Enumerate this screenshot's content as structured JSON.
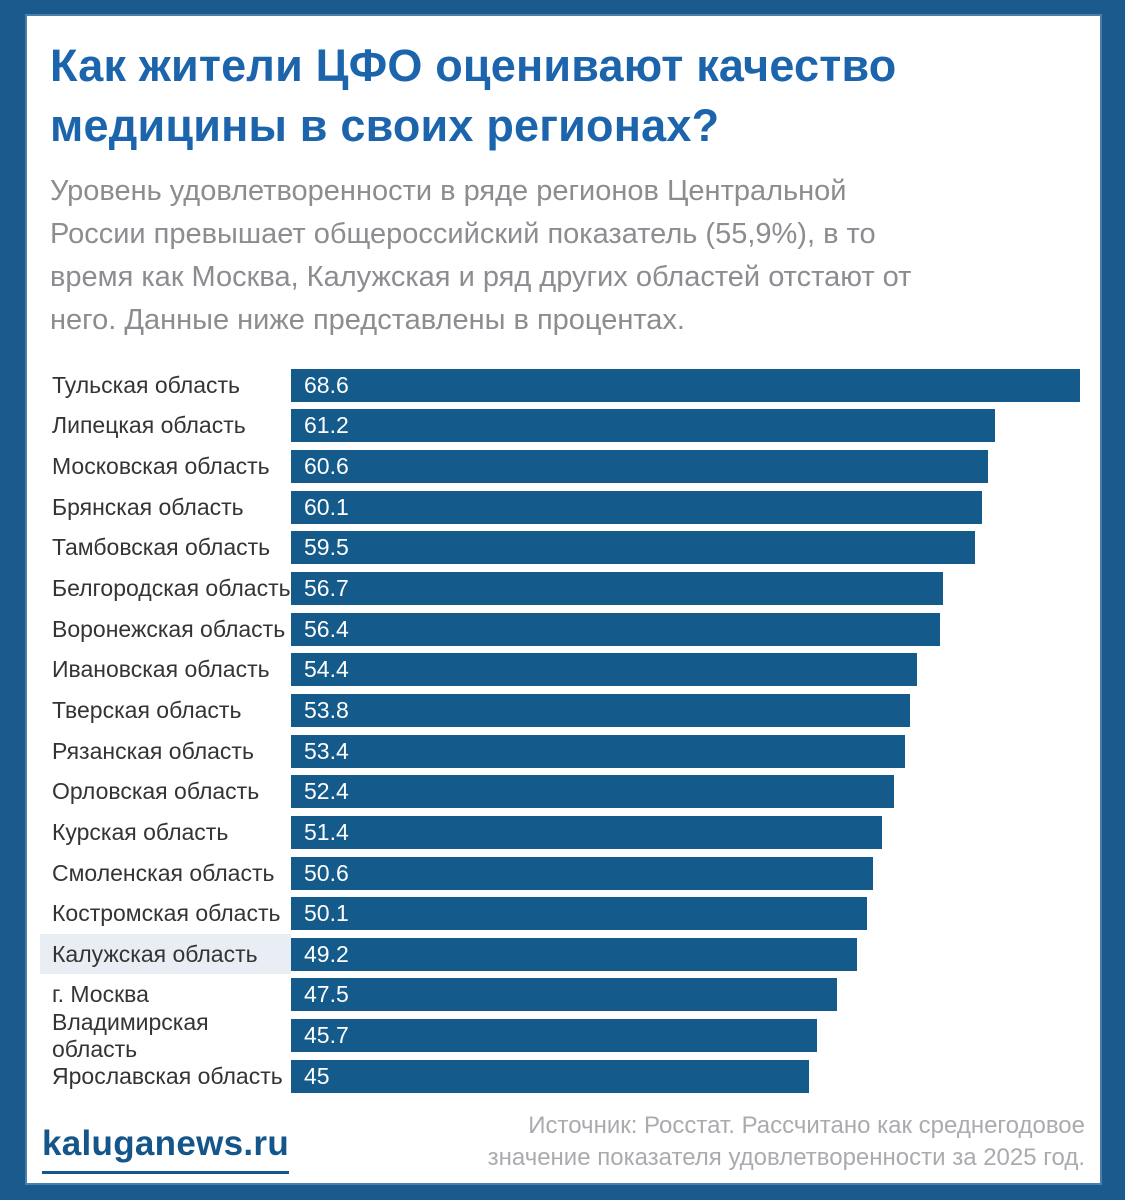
{
  "header": {
    "title_line1": "Как жители ЦФО оценивают качество",
    "title_line2": "медицины в своих регионах?",
    "subtitle_line1": "Уровень удовлетворенности в ряде регионов Центральной",
    "subtitle_line2": "России превышает общероссийский показатель (55,9%), в то",
    "subtitle_line3": "время как Москва, Калужская и ряд других областей отстают от",
    "subtitle_line4": "него. Данные ниже представлены в процентах."
  },
  "chart_data": {
    "type": "bar",
    "orientation": "horizontal",
    "title": "Как жители ЦФО оценивают качество медицины в своих регионах?",
    "units": "percent",
    "categories": [
      "Тульская область",
      "Липецкая область",
      "Московская область",
      "Брянская область",
      "Тамбовская область",
      "Белгородская область",
      "Воронежская область",
      "Ивановская область",
      "Тверская область",
      "Рязанская область",
      "Орловская область",
      "Курская область",
      "Смоленская область",
      "Костромская область",
      "Калужская область",
      "г. Москва",
      "Владимирская область",
      "Ярославская область"
    ],
    "values": [
      68.6,
      61.2,
      60.6,
      60.1,
      59.5,
      56.7,
      56.4,
      54.4,
      53.8,
      53.4,
      52.4,
      51.4,
      50.6,
      50.1,
      49.2,
      47.5,
      45.7,
      45
    ],
    "highlighted_category": "Калужская область",
    "reference_value_russia": "55,9%",
    "xlim": [
      0,
      68.6
    ],
    "value_labels": "inside-left",
    "legend": "none",
    "grid": "off"
  },
  "footer": {
    "logo": "kaluganews.ru",
    "source_line1": "Источник: Росстат. Рассчитано как среднегодовое",
    "source_line2": "значение показателя удовлетворенности за 2025 год."
  },
  "colors": {
    "frame": "#1b5a8c",
    "frame_inner_line": "#4b7ea9",
    "card_bg": "#ffffff",
    "title": "#1c65ad",
    "subtitle": "#8c8d90",
    "label": "#333436",
    "bar": "#145a8a",
    "bar_text": "#ffffff",
    "highlight_bg": "#e9eef5",
    "logo": "#14568a",
    "source_text": "#a9abae"
  }
}
